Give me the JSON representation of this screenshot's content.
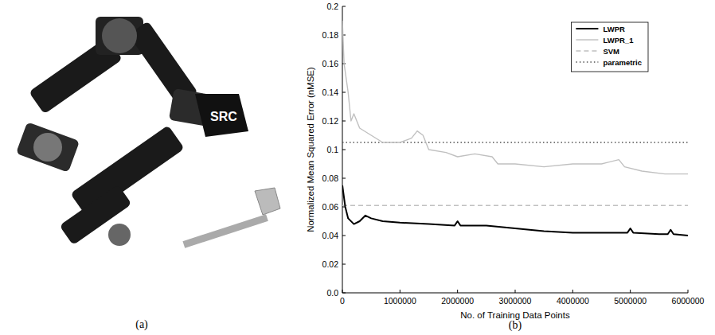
{
  "chart_data": {
    "type": "line",
    "x_label": "No. of Training Data Points",
    "y_label": "Normalized Mean Squared Error (nMSE)",
    "xlim": [
      0,
      6000000
    ],
    "xticks": [
      0,
      1000000,
      2000000,
      3000000,
      4000000,
      5000000,
      6000000
    ],
    "ylim": [
      0,
      0.2
    ],
    "yticks": [
      {
        "value": 0,
        "label": "0.0"
      },
      0.02,
      0.04,
      0.06,
      0.08,
      0.1,
      0.12,
      0.14,
      0.16,
      0.18,
      0.2
    ],
    "grid": false,
    "legend": "upper right",
    "series": [
      {
        "name": "LWPR",
        "color": "#000000",
        "line_style": "solid",
        "x": [
          0,
          50000,
          100000,
          200000,
          300000,
          400000,
          500000,
          700000,
          1000000,
          1500000,
          1950000,
          2000000,
          2050000,
          2500000,
          3000000,
          3500000,
          4000000,
          4500000,
          4950000,
          5000000,
          5050000,
          5500000,
          5650000,
          5700000,
          5750000,
          6000000
        ],
        "values": [
          0.075,
          0.06,
          0.052,
          0.048,
          0.05,
          0.054,
          0.052,
          0.05,
          0.049,
          0.048,
          0.047,
          0.05,
          0.047,
          0.047,
          0.045,
          0.043,
          0.042,
          0.042,
          0.042,
          0.045,
          0.042,
          0.041,
          0.041,
          0.044,
          0.041,
          0.04
        ]
      },
      {
        "name": "LWPR_1",
        "color": "#c0c0c0",
        "line_style": "solid",
        "x": [
          0,
          30000,
          100000,
          150000,
          200000,
          300000,
          500000,
          700000,
          1000000,
          1200000,
          1300000,
          1400000,
          1500000,
          1800000,
          2000000,
          2300000,
          2600000,
          2700000,
          3000000,
          3500000,
          4000000,
          4500000,
          4800000,
          4900000,
          5200000,
          5600000,
          6000000
        ],
        "values": [
          0.19,
          0.16,
          0.14,
          0.12,
          0.125,
          0.115,
          0.11,
          0.105,
          0.105,
          0.108,
          0.113,
          0.11,
          0.1,
          0.098,
          0.095,
          0.097,
          0.095,
          0.09,
          0.09,
          0.088,
          0.09,
          0.09,
          0.093,
          0.088,
          0.085,
          0.083,
          0.083
        ]
      },
      {
        "name": "SVM",
        "color": "#c0c0c0",
        "line_style": "dashed",
        "x": [
          0,
          6000000
        ],
        "values": [
          0.061,
          0.061
        ]
      },
      {
        "name": "parametric",
        "color": "#555555",
        "line_style": "dotted",
        "x": [
          0,
          6000000
        ],
        "values": [
          0.105,
          0.105
        ]
      }
    ]
  },
  "panel_labels": [
    "(a)",
    "(b)"
  ],
  "photo": {
    "logo": "SRC"
  }
}
